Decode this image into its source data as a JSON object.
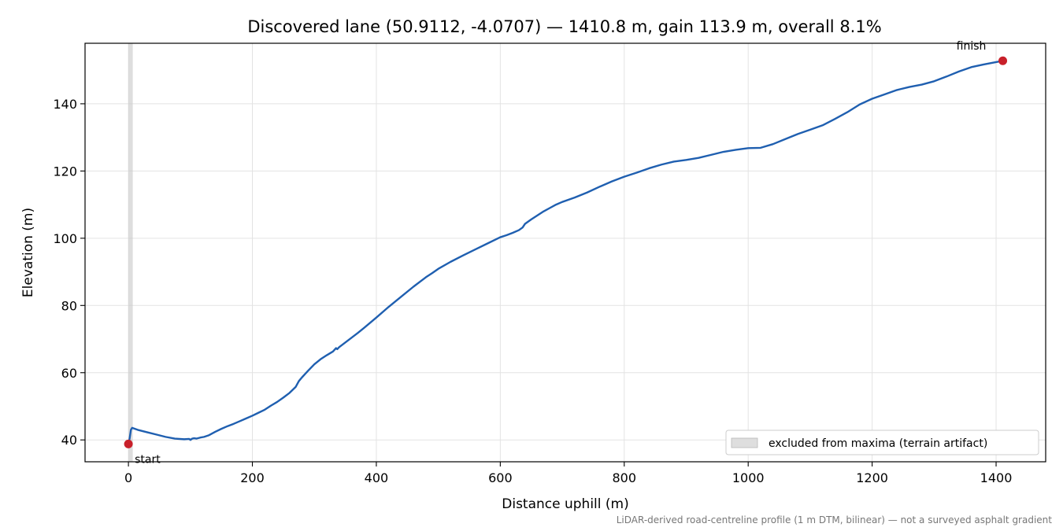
{
  "chart_data": {
    "type": "line",
    "title": "Discovered lane (50.9112, -4.0707) — 1410.8 m, gain 113.9 m, overall 8.1%",
    "xlabel": "Distance uphill (m)",
    "ylabel": "Elevation (m)",
    "xlim": [
      -70,
      1480
    ],
    "ylim": [
      33.5,
      158
    ],
    "xticks": [
      0,
      200,
      400,
      600,
      800,
      1000,
      1200,
      1400
    ],
    "yticks": [
      40,
      60,
      80,
      100,
      120,
      140
    ],
    "grid": true,
    "line_color": "#1f5fb0",
    "marker_color": "#c8202a",
    "excluded_color": "#c8c8c8",
    "excluded_range": [
      0,
      7
    ],
    "legend": {
      "label": "excluded from maxima (terrain artifact)",
      "placement": "lower right"
    },
    "series": [
      {
        "x": [
          0,
          2,
          4,
          6,
          15,
          30,
          45,
          60,
          75,
          90,
          98,
          100,
          103,
          106,
          110,
          116,
          122,
          130,
          140,
          150,
          160,
          170,
          180,
          190,
          200,
          210,
          220,
          230,
          240,
          250,
          260,
          270,
          275,
          280,
          285,
          290,
          300,
          310,
          320,
          330,
          335,
          337,
          340,
          350,
          360,
          370,
          380,
          400,
          420,
          440,
          460,
          480,
          490,
          500,
          520,
          540,
          560,
          580,
          600,
          610,
          620,
          630,
          636,
          640,
          650,
          660,
          670,
          680,
          690,
          700,
          720,
          740,
          760,
          780,
          800,
          820,
          840,
          860,
          880,
          900,
          920,
          940,
          960,
          980,
          1000,
          1020,
          1040,
          1060,
          1080,
          1100,
          1120,
          1140,
          1160,
          1180,
          1200,
          1220,
          1240,
          1260,
          1280,
          1300,
          1320,
          1340,
          1360,
          1380,
          1400,
          1410.8
        ],
        "y": [
          38.8,
          40.5,
          43.0,
          43.6,
          43.0,
          42.3,
          41.6,
          40.9,
          40.4,
          40.2,
          40.3,
          40.0,
          40.4,
          40.5,
          40.4,
          40.7,
          40.9,
          41.4,
          42.4,
          43.3,
          44.1,
          44.8,
          45.6,
          46.4,
          47.2,
          48.1,
          49.0,
          50.2,
          51.3,
          52.6,
          54.0,
          55.8,
          57.5,
          58.6,
          59.6,
          60.6,
          62.5,
          64.0,
          65.2,
          66.3,
          67.3,
          67.0,
          67.6,
          69.0,
          70.4,
          71.8,
          73.3,
          76.4,
          79.6,
          82.6,
          85.6,
          88.4,
          89.6,
          90.9,
          93.0,
          94.9,
          96.7,
          98.5,
          100.3,
          100.9,
          101.6,
          102.4,
          103.2,
          104.3,
          105.6,
          106.8,
          108.0,
          109.0,
          110.0,
          110.8,
          112.1,
          113.6,
          115.3,
          116.9,
          118.3,
          119.5,
          120.8,
          121.9,
          122.8,
          123.3,
          123.9,
          124.8,
          125.7,
          126.3,
          126.8,
          126.9,
          128.0,
          129.5,
          131.0,
          132.3,
          133.6,
          135.5,
          137.5,
          139.8,
          141.5,
          142.8,
          144.1,
          145.0,
          145.7,
          146.7,
          148.1,
          149.6,
          150.9,
          151.7,
          152.4,
          152.8
        ]
      }
    ],
    "points": [
      {
        "label": "start",
        "x": 0,
        "y": 38.8
      },
      {
        "label": "finish",
        "x": 1410.8,
        "y": 152.8
      }
    ],
    "caption": "LiDAR-derived road-centreline profile (1 m DTM, bilinear) — not a surveyed asphalt gradient"
  }
}
